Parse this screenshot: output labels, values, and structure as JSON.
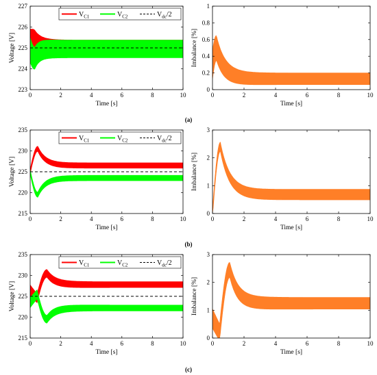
{
  "figure": {
    "captions": [
      "(a)",
      "(b)",
      "(c)"
    ],
    "colors": {
      "vc1": "#ff0000",
      "vc2": "#00ff00",
      "vdc": "#000000",
      "imbalance": "#ff7f27"
    }
  },
  "chart_data": [
    {
      "type": "line",
      "panel": "a",
      "role": "voltage",
      "xlabel": "Time [s]",
      "ylabel": "Voltage [V]",
      "xlim": [
        0,
        10
      ],
      "ylim": [
        223,
        227
      ],
      "xticks": [
        0,
        2,
        4,
        6,
        8,
        10
      ],
      "yticks": [
        223,
        224,
        225,
        226,
        227
      ],
      "legend": {
        "position": "top-right",
        "entries": [
          {
            "main": "V",
            "sub": "C1",
            "tail": ""
          },
          {
            "main": "V",
            "sub": "C2",
            "tail": ""
          },
          {
            "main": "V",
            "sub": "dc",
            "tail": "/2"
          }
        ]
      },
      "ref": 225,
      "series": [
        {
          "name": "VC1",
          "center_start": 225.1,
          "center_peak": 225.3,
          "center_final": 225.15,
          "peak_time": 0.3,
          "settle_time": 0.9,
          "band_start": 1.6,
          "band_final": 0.45
        },
        {
          "name": "VC2",
          "center_start": 224.9,
          "center_peak": 224.5,
          "center_final": 224.95,
          "peak_time": 0.3,
          "settle_time": 0.9,
          "band_start": 1.2,
          "band_final": 0.85
        }
      ]
    },
    {
      "type": "line",
      "panel": "a",
      "role": "imbalance",
      "xlabel": "Time [s]",
      "ylabel": "Imbalance [%]",
      "xlim": [
        0,
        10
      ],
      "ylim": [
        0,
        1
      ],
      "xticks": [
        0,
        2,
        4,
        6,
        8,
        10
      ],
      "yticks": [
        0,
        0.2,
        0.4,
        0.6,
        0.8,
        1
      ],
      "series": [
        {
          "name": "Imbalance",
          "center_start": 0.3,
          "center_peak": 0.5,
          "center_final": 0.13,
          "peak_time": 0.25,
          "settle_time": 1.4,
          "band_start": 0.35,
          "band_final": 0.14
        }
      ]
    },
    {
      "type": "line",
      "panel": "b",
      "role": "voltage",
      "xlabel": "Time [s]",
      "ylabel": "Voltage [V]",
      "xlim": [
        0,
        10
      ],
      "ylim": [
        215,
        235
      ],
      "xticks": [
        0,
        2,
        4,
        6,
        8,
        10
      ],
      "yticks": [
        215,
        220,
        225,
        230,
        235
      ],
      "legend": {
        "position": "top-right",
        "entries": [
          {
            "main": "V",
            "sub": "C1",
            "tail": ""
          },
          {
            "main": "V",
            "sub": "C2",
            "tail": ""
          },
          {
            "main": "V",
            "sub": "dc",
            "tail": "/2"
          }
        ]
      },
      "ref": 225,
      "series": [
        {
          "name": "VC1",
          "center_start": 225,
          "center_peak": 230.5,
          "center_final": 226.5,
          "peak_time": 0.5,
          "settle_time": 1.6,
          "band_start": 1.2,
          "band_final": 1.3
        },
        {
          "name": "VC2",
          "center_start": 225,
          "center_peak": 219.5,
          "center_final": 223.5,
          "peak_time": 0.5,
          "settle_time": 1.6,
          "band_start": 1.2,
          "band_final": 1.3
        }
      ]
    },
    {
      "type": "line",
      "panel": "b",
      "role": "imbalance",
      "xlabel": "Time [s]",
      "ylabel": "Imbalance [%]",
      "xlim": [
        0,
        10
      ],
      "ylim": [
        0,
        3
      ],
      "xticks": [
        0,
        2,
        4,
        6,
        8,
        10
      ],
      "yticks": [
        0,
        1,
        2,
        3
      ],
      "series": [
        {
          "name": "Imbalance",
          "center_start": 0,
          "center_peak": 2.4,
          "center_final": 0.68,
          "peak_time": 0.5,
          "settle_time": 1.8,
          "band_start": 0.3,
          "band_final": 0.38
        }
      ]
    },
    {
      "type": "line",
      "panel": "c",
      "role": "voltage",
      "xlabel": "Time [s]",
      "ylabel": "Voltage [V]",
      "xlim": [
        0,
        10
      ],
      "ylim": [
        215,
        235
      ],
      "xticks": [
        0,
        2,
        4,
        6,
        8,
        10
      ],
      "yticks": [
        215,
        220,
        225,
        230,
        235
      ],
      "legend": {
        "position": "top-right",
        "entries": [
          {
            "main": "V",
            "sub": "C1",
            "tail": ""
          },
          {
            "main": "V",
            "sub": "C2",
            "tail": ""
          },
          {
            "main": "V",
            "sub": "dc",
            "tail": "/2"
          }
        ]
      },
      "ref": 225,
      "series": [
        {
          "name": "VC1",
          "center_start": 226.5,
          "center_dip": 224.5,
          "dip_time": 0.45,
          "center_peak": 230.5,
          "center_final": 227.8,
          "peak_time": 1.1,
          "settle_time": 2.2,
          "band_start": 2.5,
          "band_final": 1.4
        },
        {
          "name": "VC2",
          "center_start": 223.5,
          "center_dip": 225.5,
          "dip_time": 0.45,
          "center_peak": 219.5,
          "center_final": 222.2,
          "peak_time": 1.1,
          "settle_time": 2.2,
          "band_start": 2.5,
          "band_final": 1.4
        }
      ]
    },
    {
      "type": "line",
      "panel": "c",
      "role": "imbalance",
      "xlabel": "Time [s]",
      "ylabel": "Imbalance [%]",
      "xlim": [
        0,
        10
      ],
      "ylim": [
        0,
        3
      ],
      "xticks": [
        0,
        2,
        4,
        6,
        8,
        10
      ],
      "yticks": [
        0,
        1,
        2,
        3
      ],
      "series": [
        {
          "name": "Imbalance",
          "center_start": 0.7,
          "center_dip": 0.2,
          "dip_time": 0.45,
          "center_peak": 2.45,
          "center_final": 1.25,
          "peak_time": 1.1,
          "settle_time": 2.2,
          "band_start": 0.7,
          "band_final": 0.42
        }
      ]
    }
  ]
}
